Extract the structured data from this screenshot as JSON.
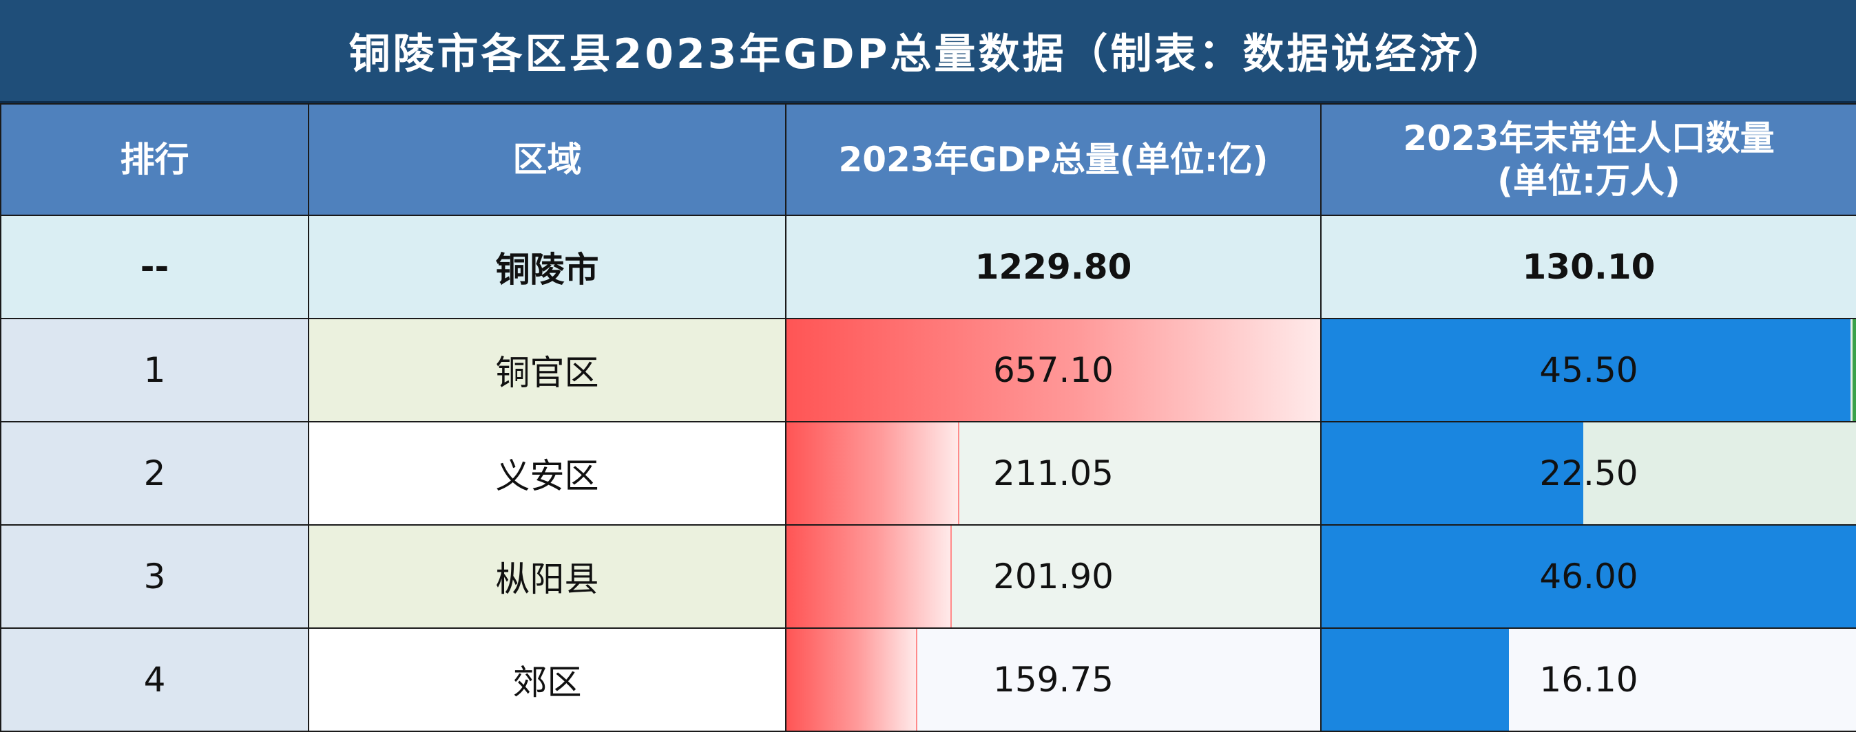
{
  "title": "铜陵市各区县2023年GDP总量数据（制表：数据说经济）",
  "headers": {
    "rank": "排行",
    "region": "区域",
    "gdp": "2023年GDP总量(单位:亿)",
    "pop_line1": "2023年末常住人口数量",
    "pop_line2": "(单位:万人)"
  },
  "total": {
    "rank": "--",
    "region": "铜陵市",
    "gdp": "1229.80",
    "population": "130.10"
  },
  "rows": [
    {
      "rank": "1",
      "region": "铜官区",
      "gdp": "657.10",
      "population": "45.50"
    },
    {
      "rank": "2",
      "region": "义安区",
      "gdp": "211.05",
      "population": "22.50"
    },
    {
      "rank": "3",
      "region": "枞阳县",
      "gdp": "201.90",
      "population": "46.00"
    },
    {
      "rank": "4",
      "region": "郊区",
      "gdp": "159.75",
      "population": "16.10"
    }
  ],
  "colors": {
    "title_bg": "#1f4e79",
    "header_bg": "#4f81bd",
    "total_bg": "#daeef3",
    "gdp_bar": "#ff5555",
    "pop_bar": "#1a86e0"
  }
}
